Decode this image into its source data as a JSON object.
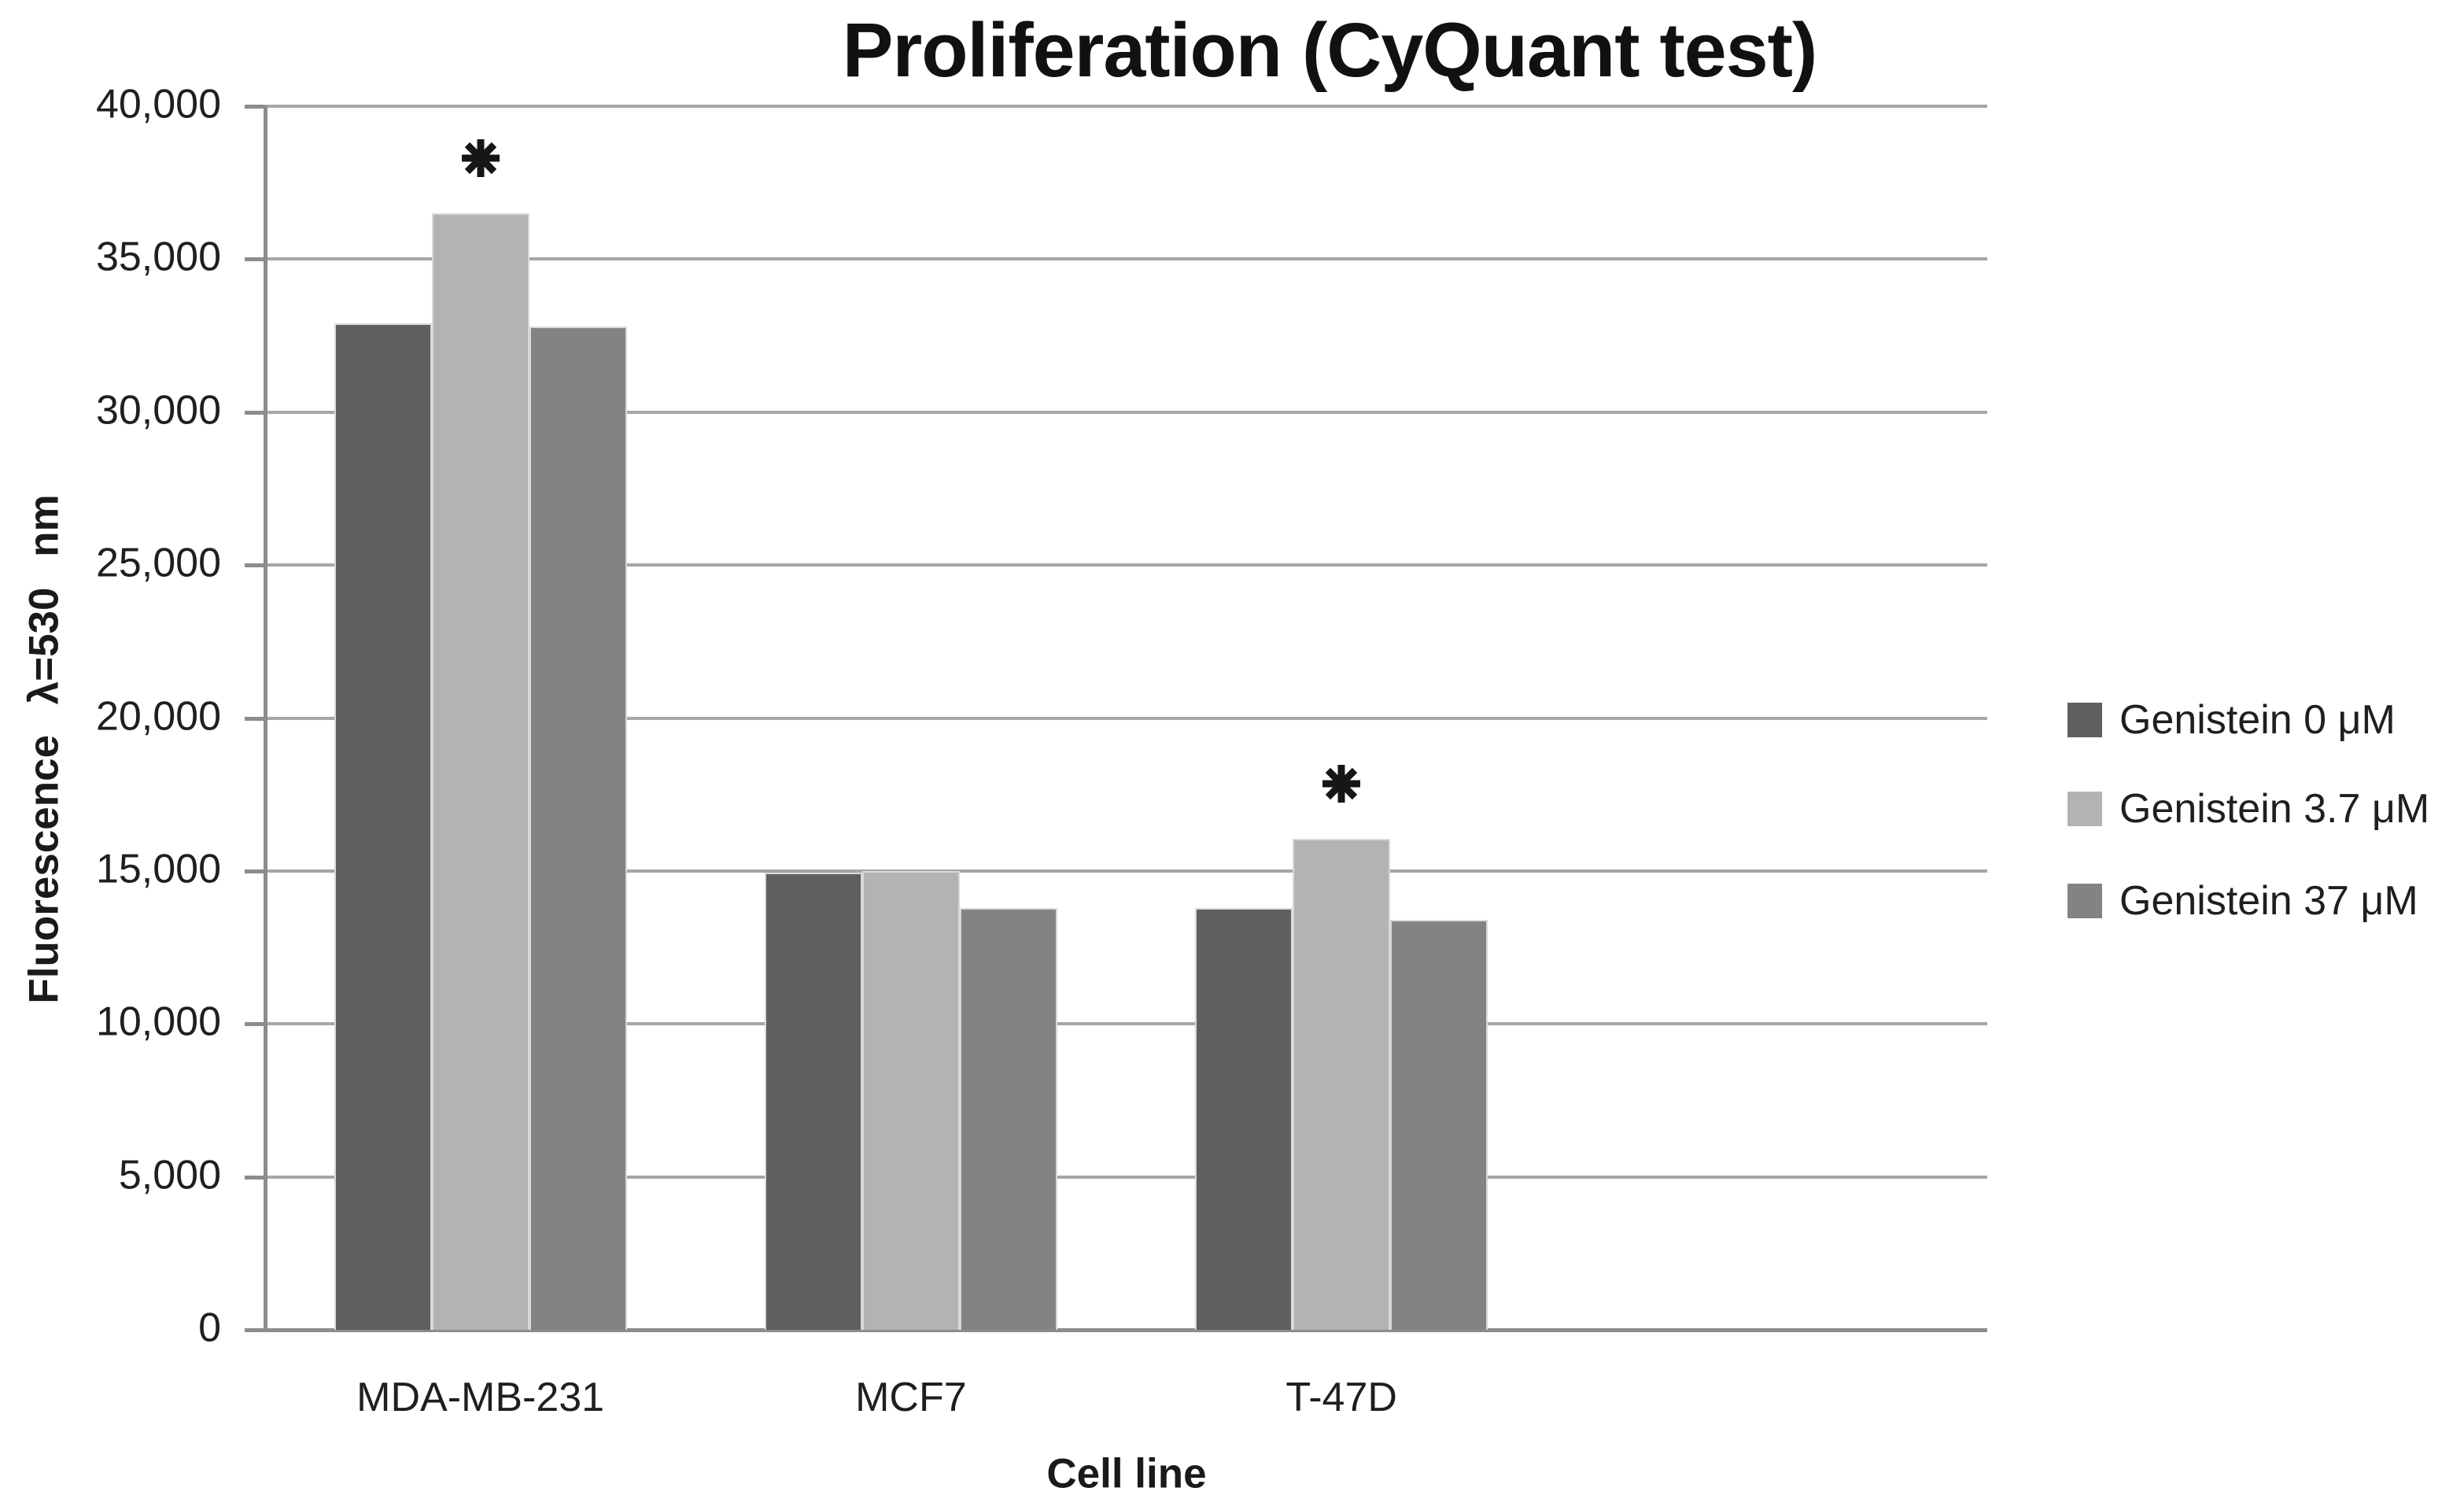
{
  "chart_data": {
    "type": "bar",
    "title": "Proliferation (CyQuant test)",
    "xlabel": "Cell line",
    "ylabel": "Fluorescence λ=530 nm",
    "categories": [
      "MDA-MB-231",
      "MCF7",
      "T-47D"
    ],
    "series": [
      {
        "name": "Genistein 0 μM",
        "color": "#5f5f5f",
        "values": [
          32900,
          14950,
          13800
        ]
      },
      {
        "name": "Genistein 3.7 μM",
        "color": "#b3b3b3",
        "values": [
          36500,
          15000,
          16050
        ]
      },
      {
        "name": "Genistein 37 μM",
        "color": "#838383",
        "values": [
          32800,
          13800,
          13400
        ]
      }
    ],
    "significance_marks": [
      {
        "category": "MDA-MB-231",
        "series": "Genistein 3.7 μM",
        "symbol": "*"
      },
      {
        "category": "T-47D",
        "series": "Genistein 3.7 μM",
        "symbol": "*"
      }
    ],
    "ylim": [
      0,
      40000
    ],
    "ytick_step": 5000,
    "ytick_labels": [
      "0",
      "5,000",
      "10,000",
      "15,000",
      "20,000",
      "25,000",
      "30,000",
      "35,000",
      "40,000"
    ],
    "grid": "horizontal",
    "legend_position": "right",
    "colors": {
      "gridline": "#a6a6a6",
      "axis": "#8c8c8c",
      "text": "#1f1f1f",
      "background": "#ffffff",
      "bar_border": "#d9d9d9"
    }
  }
}
